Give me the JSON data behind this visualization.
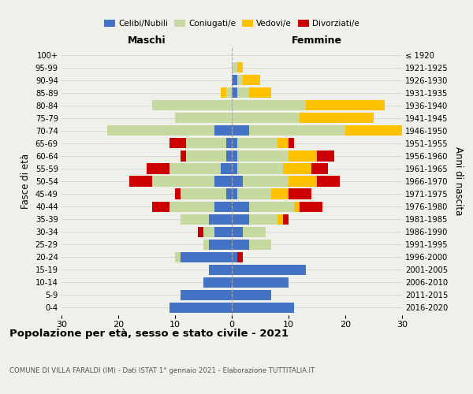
{
  "age_groups": [
    "0-4",
    "5-9",
    "10-14",
    "15-19",
    "20-24",
    "25-29",
    "30-34",
    "35-39",
    "40-44",
    "45-49",
    "50-54",
    "55-59",
    "60-64",
    "65-69",
    "70-74",
    "75-79",
    "80-84",
    "85-89",
    "90-94",
    "95-99",
    "100+"
  ],
  "birth_years": [
    "2016-2020",
    "2011-2015",
    "2006-2010",
    "2001-2005",
    "1996-2000",
    "1991-1995",
    "1986-1990",
    "1981-1985",
    "1976-1980",
    "1971-1975",
    "1966-1970",
    "1961-1965",
    "1956-1960",
    "1951-1955",
    "1946-1950",
    "1941-1945",
    "1936-1940",
    "1931-1935",
    "1926-1930",
    "1921-1925",
    "≤ 1920"
  ],
  "males": {
    "celibi": [
      11,
      9,
      5,
      4,
      9,
      4,
      3,
      4,
      3,
      1,
      3,
      2,
      1,
      1,
      3,
      0,
      0,
      0,
      0,
      0,
      0
    ],
    "coniugati": [
      0,
      0,
      0,
      0,
      1,
      1,
      2,
      5,
      8,
      8,
      11,
      9,
      7,
      7,
      19,
      10,
      14,
      1,
      0,
      0,
      0
    ],
    "vedovi": [
      0,
      0,
      0,
      0,
      0,
      0,
      0,
      0,
      0,
      0,
      0,
      0,
      0,
      0,
      0,
      0,
      0,
      1,
      0,
      0,
      0
    ],
    "divorziati": [
      0,
      0,
      0,
      0,
      0,
      0,
      1,
      0,
      3,
      1,
      4,
      4,
      1,
      3,
      0,
      0,
      0,
      0,
      0,
      0,
      0
    ]
  },
  "females": {
    "nubili": [
      11,
      7,
      10,
      13,
      1,
      3,
      2,
      3,
      3,
      1,
      2,
      1,
      1,
      1,
      3,
      0,
      0,
      1,
      1,
      0,
      0
    ],
    "coniugate": [
      0,
      0,
      0,
      0,
      0,
      4,
      4,
      5,
      8,
      6,
      8,
      8,
      9,
      7,
      17,
      12,
      13,
      2,
      1,
      1,
      0
    ],
    "vedove": [
      0,
      0,
      0,
      0,
      0,
      0,
      0,
      1,
      1,
      3,
      5,
      5,
      5,
      2,
      21,
      13,
      14,
      4,
      3,
      1,
      0
    ],
    "divorziate": [
      0,
      0,
      0,
      0,
      1,
      0,
      0,
      1,
      4,
      4,
      4,
      3,
      3,
      1,
      3,
      0,
      0,
      0,
      0,
      0,
      0
    ]
  },
  "color_celibi": "#4472c4",
  "color_coniugati": "#c5d9a0",
  "color_vedovi": "#ffc000",
  "color_divorziati": "#cc0000",
  "title": "Popolazione per età, sesso e stato civile - 2021",
  "subtitle": "COMUNE DI VILLA FARALDI (IM) - Dati ISTAT 1° gennaio 2021 - Elaborazione TUTTITALIA.IT",
  "xlabel_males": "Maschi",
  "xlabel_females": "Femmine",
  "ylabel_left": "Fasce di età",
  "ylabel_right": "Anni di nascita",
  "xlim": 30,
  "background_color": "#f0f0eb"
}
